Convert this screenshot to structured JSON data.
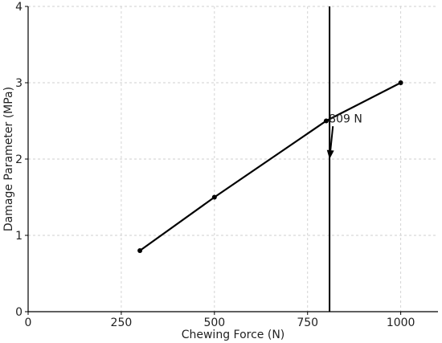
{
  "chart_data": {
    "type": "line",
    "title": "",
    "xlabel": "Chewing Force (N)",
    "ylabel": "Damage Parameter (MPa)",
    "xlim": [
      0,
      1100
    ],
    "ylim": [
      0,
      4
    ],
    "xticks": [
      0,
      250,
      500,
      750,
      1000
    ],
    "yticks": [
      0,
      1,
      2,
      3,
      4
    ],
    "grid": true,
    "series": [
      {
        "x": [
          300,
          500,
          800,
          1000
        ],
        "y": [
          0.8,
          1.5,
          2.5,
          3.0
        ],
        "color": "#000000",
        "marker": "circle"
      }
    ],
    "vertical_line": {
      "x": 809,
      "color": "#000000"
    },
    "annotation": {
      "text": "809 N",
      "text_x": 820,
      "text_y": 2.53,
      "arrow_from": [
        818,
        2.43
      ],
      "arrow_to": [
        809,
        2.0
      ]
    }
  }
}
